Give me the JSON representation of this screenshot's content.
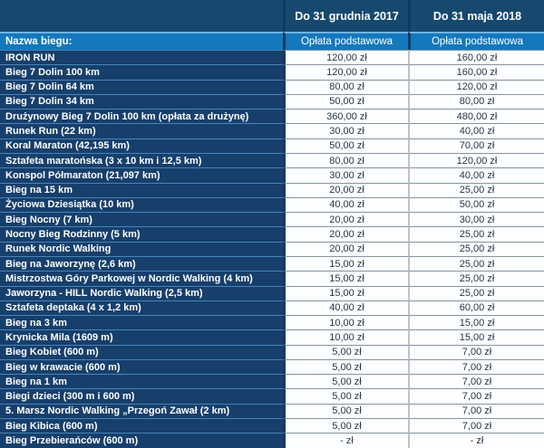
{
  "table": {
    "header": {
      "col_2017": "Do 31 grudnia 2017",
      "col_2018": "Do 31 maja 2018"
    },
    "subheader": {
      "name_label": "Nazwa biegu:",
      "fee_label": "Opłata podstawowa"
    },
    "rows": [
      {
        "name": "IRON RUN",
        "price_2017": "120,00 zł",
        "price_2018": "160,00 zł"
      },
      {
        "name": "Bieg 7 Dolin 100 km",
        "price_2017": "120,00 zł",
        "price_2018": "160,00 zł"
      },
      {
        "name": "Bieg 7 Dolin 64 km",
        "price_2017": "80,00 zł",
        "price_2018": "120,00 zł"
      },
      {
        "name": "Bieg 7 Dolin 34 km",
        "price_2017": "50,00 zł",
        "price_2018": "80,00 zł"
      },
      {
        "name": "Drużynowy Bieg 7 Dolin 100 km (opłata za drużynę)",
        "price_2017": "360,00 zł",
        "price_2018": "480,00 zł"
      },
      {
        "name": "Runek Run (22 km)",
        "price_2017": "30,00 zł",
        "price_2018": "40,00 zł"
      },
      {
        "name": "Koral Maraton (42,195 km)",
        "price_2017": "50,00 zł",
        "price_2018": "70,00 zł"
      },
      {
        "name": "Sztafeta maratońska (3 x 10 km i 12,5 km)",
        "price_2017": "80,00 zł",
        "price_2018": "120,00 zł"
      },
      {
        "name": "Konspol Półmaraton (21,097 km)",
        "price_2017": "30,00 zł",
        "price_2018": "40,00 zł"
      },
      {
        "name": "Bieg na 15 km",
        "price_2017": "20,00 zł",
        "price_2018": "25,00 zł"
      },
      {
        "name": "Życiowa Dziesiątka (10 km)",
        "price_2017": "40,00 zł",
        "price_2018": "50,00 zł"
      },
      {
        "name": "Bieg Nocny (7 km)",
        "price_2017": "20,00 zł",
        "price_2018": "30,00 zł"
      },
      {
        "name": "Nocny Bieg Rodzinny  (5 km)",
        "price_2017": "20,00 zł",
        "price_2018": "25,00 zł"
      },
      {
        "name": "Runek Nordic Walking",
        "price_2017": "20,00 zł",
        "price_2018": "25,00 zł"
      },
      {
        "name": "Bieg na Jaworzynę (2,6 km)",
        "price_2017": "15,00 zł",
        "price_2018": "25,00 zł"
      },
      {
        "name": "Mistrzostwa Góry Parkowej w Nordic Walking (4 km)",
        "price_2017": "15,00 zł",
        "price_2018": "25,00 zł"
      },
      {
        "name": "Jaworzyna - HILL Nordic Walking (2,5 km)",
        "price_2017": "15,00 zł",
        "price_2018": "25,00 zł"
      },
      {
        "name": "Sztafeta deptaka (4 x 1,2 km)",
        "price_2017": "40,00 zł",
        "price_2018": "60,00 zł"
      },
      {
        "name": "Bieg na 3 km",
        "price_2017": "10,00 zł",
        "price_2018": "15,00 zł"
      },
      {
        "name": "Krynicka Mila (1609 m)",
        "price_2017": "10,00 zł",
        "price_2018": "15,00 zł"
      },
      {
        "name": "Bieg  Kobiet (600 m)",
        "price_2017": "5,00 zł",
        "price_2018": "7,00 zł"
      },
      {
        "name": "Bieg w krawacie (600 m)",
        "price_2017": "5,00 zł",
        "price_2018": "7,00 zł"
      },
      {
        "name": "Bieg na 1 km",
        "price_2017": "5,00 zł",
        "price_2018": "7,00 zł"
      },
      {
        "name": "Biegi dzieci (300 m i 600 m)",
        "price_2017": "5,00 zł",
        "price_2018": "7,00 zł"
      },
      {
        "name": "5. Marsz Nordic Walking „Przegoń Zawał (2 km)",
        "price_2017": "5,00 zł",
        "price_2018": "7,00 zł"
      },
      {
        "name": "Bieg Kibica (600 m)",
        "price_2017": "5,00 zł",
        "price_2018": "7,00 zł"
      },
      {
        "name": "Bieg Przebierańców (600 m)",
        "price_2017": "-  zł",
        "price_2018": "-  zł"
      }
    ]
  },
  "colors": {
    "header_navy": "#17496F",
    "row_navy": "#173F6C",
    "accent_blue": "#1478BC",
    "highlight_blue": "#6FB3E3",
    "row_divider_blue": "#4684B8",
    "price_divider_gray": "#8494A1",
    "price_column_divider": "#BCC3C9",
    "price_text": "#253546",
    "bottom_border": "#9CC2E5"
  }
}
